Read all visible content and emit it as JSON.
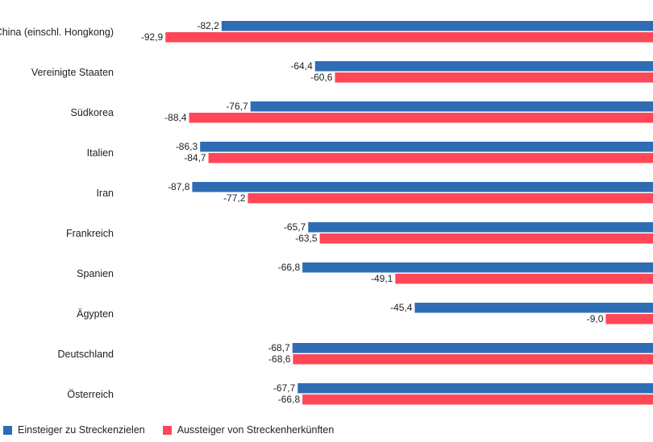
{
  "chart_data": {
    "type": "bar",
    "orientation": "horizontal",
    "categories": [
      "China (einschl. Hongkong)",
      "Vereinigte Staaten",
      "Südkorea",
      "Italien",
      "Iran",
      "Frankreich",
      "Spanien",
      "Ägypten",
      "Deutschland",
      "Österreich"
    ],
    "series": [
      {
        "name": "Einsteiger zu Streckenzielen",
        "color": "#2e6db4",
        "values": [
          -82.2,
          -64.4,
          -76.7,
          -86.3,
          -87.8,
          -65.7,
          -66.8,
          -45.4,
          -68.7,
          -67.7
        ],
        "labels": [
          "-82,2",
          "-64,4",
          "-76,7",
          "-86,3",
          "-87,8",
          "-65,7",
          "-66,8",
          "-45,4",
          "-68,7",
          "-67,7"
        ]
      },
      {
        "name": "Aussteiger von Streckenherkünften",
        "color": "#ff4757",
        "values": [
          -92.9,
          -60.6,
          -88.4,
          -84.7,
          -77.2,
          -63.5,
          -49.1,
          -9.0,
          -68.6,
          -66.8
        ],
        "labels": [
          "-92,9",
          "-60,6",
          "-88,4",
          "-84,7",
          "-77,2",
          "-63,5",
          "-49,1",
          "-9,0",
          "-68,6",
          "-66,8"
        ]
      }
    ],
    "title": "",
    "xlabel": "",
    "ylabel": "",
    "grid": false,
    "legend_position": "bottom-left"
  }
}
